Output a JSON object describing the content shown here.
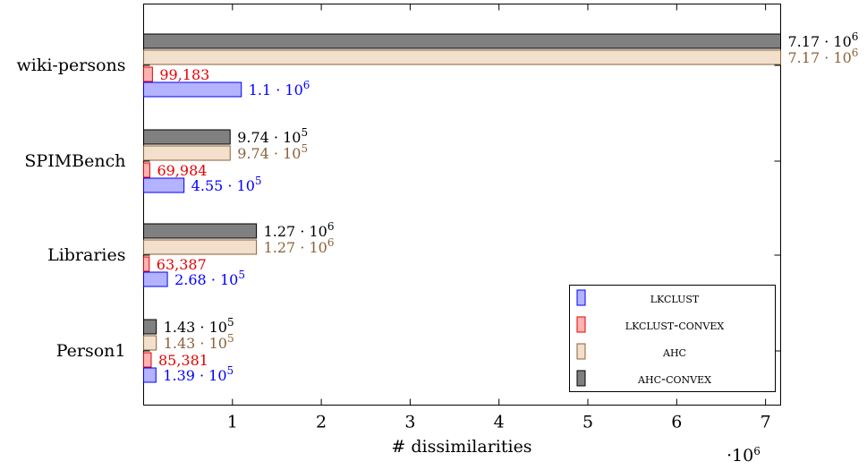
{
  "chart_data": {
    "type": "bar",
    "orientation": "horizontal",
    "categories": [
      "wiki-persons",
      "SPIMBench",
      "Libraries",
      "Person1"
    ],
    "series": [
      {
        "name": "LKCLUST",
        "color": "#0000ff",
        "fill": "#b3b3ff",
        "values": [
          1100000,
          455000,
          268000,
          139000
        ],
        "labels": [
          [
            "1.1 · 10",
            "6"
          ],
          [
            "4.55 · 10",
            "5"
          ],
          [
            "2.68 · 10",
            "5"
          ],
          [
            "1.39 · 10",
            "5"
          ]
        ]
      },
      {
        "name": "LKCLUST-convex",
        "color": "#e60000",
        "fill": "#ffb3b3",
        "values": [
          99183,
          69984,
          63387,
          85381
        ],
        "labels": [
          [
            "99,183",
            ""
          ],
          [
            "69,984",
            ""
          ],
          [
            "63,387",
            ""
          ],
          [
            "85,381",
            ""
          ]
        ]
      },
      {
        "name": "AHC",
        "color": "#8c6239",
        "fill": "#f2dfcc",
        "values": [
          7170000,
          974000,
          1270000,
          143000
        ],
        "labels": [
          [
            "7.17 · 10",
            "6"
          ],
          [
            "9.74 · 10",
            "5"
          ],
          [
            "1.27 · 10",
            "6"
          ],
          [
            "1.43 · 10",
            "5"
          ]
        ]
      },
      {
        "name": "AHC-convex",
        "color": "#000000",
        "fill": "#808080",
        "values": [
          7170000,
          974000,
          1270000,
          143000
        ],
        "labels": [
          [
            "7.17 · 10",
            "6"
          ],
          [
            "9.74 · 10",
            "5"
          ],
          [
            "1.27 · 10",
            "6"
          ],
          [
            "1.43 · 10",
            "5"
          ]
        ]
      }
    ],
    "xlabel": "# dissimilarities",
    "xlim": [
      0,
      7170000
    ],
    "xticks": [
      1000000,
      2000000,
      3000000,
      4000000,
      5000000,
      6000000,
      7000000
    ],
    "xtick_labels": [
      "1",
      "2",
      "3",
      "4",
      "5",
      "6",
      "7"
    ],
    "x_scale_label": [
      "·10",
      "6"
    ],
    "legend_position": "bottom-right",
    "grid": false
  }
}
